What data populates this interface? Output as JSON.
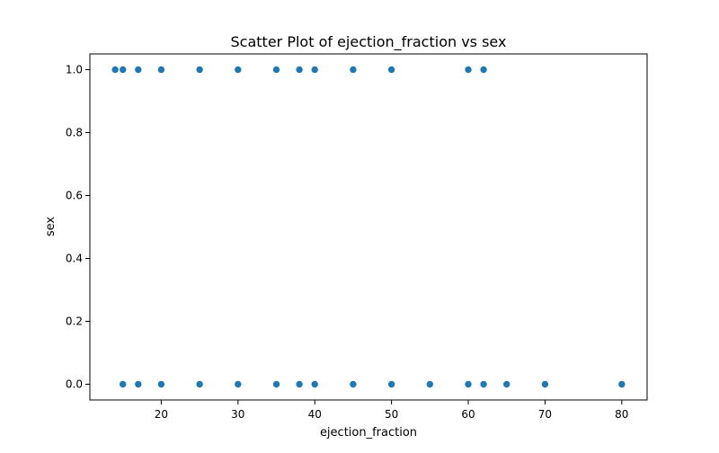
{
  "chart_data": {
    "type": "scatter",
    "title": "Scatter Plot of ejection_fraction vs sex",
    "xlabel": "ejection_fraction",
    "ylabel": "sex",
    "xlim": [
      10.7,
      83.3
    ],
    "ylim": [
      -0.05,
      1.05
    ],
    "xticks": [
      20,
      30,
      40,
      50,
      60,
      70,
      80
    ],
    "yticks": [
      0.0,
      0.2,
      0.4,
      0.6,
      0.8,
      1.0
    ],
    "xtick_labels": [
      "20",
      "30",
      "40",
      "50",
      "60",
      "70",
      "80"
    ],
    "ytick_labels": [
      "0.0",
      "0.2",
      "0.4",
      "0.6",
      "0.8",
      "1.0"
    ],
    "grid": false,
    "marker_color": "#1f77b4",
    "points": [
      {
        "x": 14,
        "y": 1
      },
      {
        "x": 15,
        "y": 1
      },
      {
        "x": 17,
        "y": 1
      },
      {
        "x": 20,
        "y": 1
      },
      {
        "x": 25,
        "y": 1
      },
      {
        "x": 30,
        "y": 1
      },
      {
        "x": 35,
        "y": 1
      },
      {
        "x": 38,
        "y": 1
      },
      {
        "x": 40,
        "y": 1
      },
      {
        "x": 45,
        "y": 1
      },
      {
        "x": 50,
        "y": 1
      },
      {
        "x": 60,
        "y": 1
      },
      {
        "x": 62,
        "y": 1
      },
      {
        "x": 15,
        "y": 0
      },
      {
        "x": 17,
        "y": 0
      },
      {
        "x": 20,
        "y": 0
      },
      {
        "x": 25,
        "y": 0
      },
      {
        "x": 30,
        "y": 0
      },
      {
        "x": 35,
        "y": 0
      },
      {
        "x": 38,
        "y": 0
      },
      {
        "x": 40,
        "y": 0
      },
      {
        "x": 45,
        "y": 0
      },
      {
        "x": 50,
        "y": 0
      },
      {
        "x": 55,
        "y": 0
      },
      {
        "x": 60,
        "y": 0
      },
      {
        "x": 62,
        "y": 0
      },
      {
        "x": 65,
        "y": 0
      },
      {
        "x": 70,
        "y": 0
      },
      {
        "x": 80,
        "y": 0
      }
    ]
  }
}
